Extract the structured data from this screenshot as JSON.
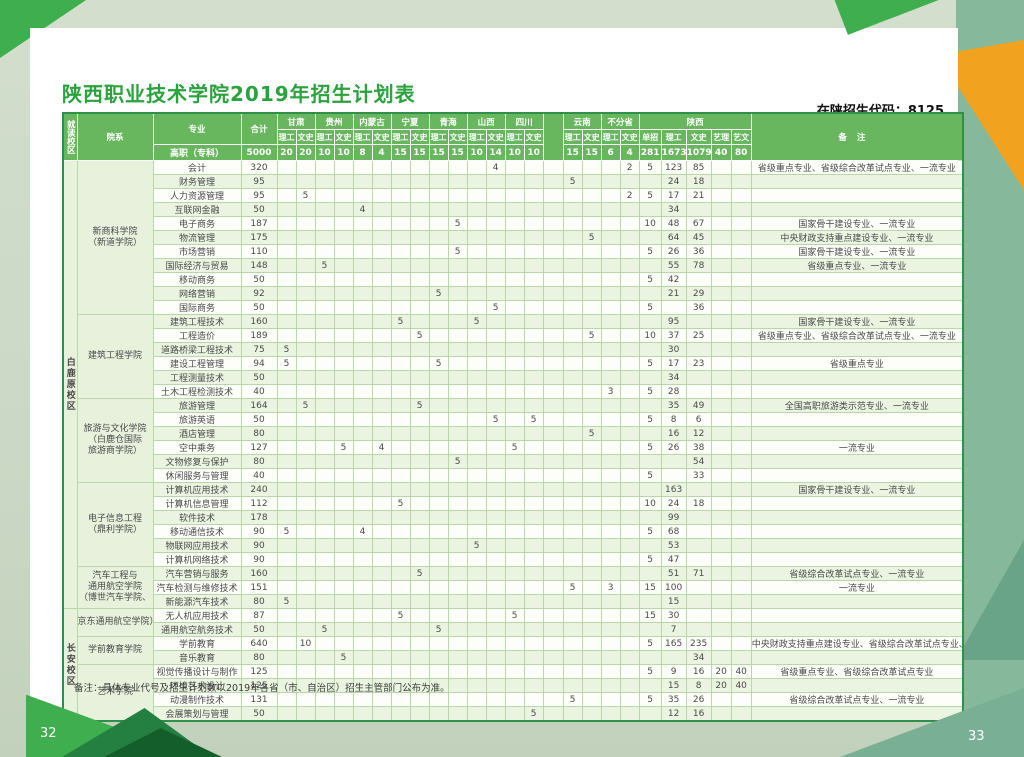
{
  "page": {
    "title": "陕西职业技术学院2019年招生计划表",
    "admission_code_label": "在陕招生代码：8125",
    "footnote": "备注：具体专业代号及招生计划数以2019年各省（市、自治区）招生主管部门公布为准。",
    "page_number_left": "32",
    "page_number_right": "33"
  },
  "colors": {
    "title_green": "#2aa23d",
    "header_green": "#68b75e",
    "thick_border_green": "#2e9049",
    "teal_band": "#86b89c",
    "orange_accent": "#f1a31f"
  },
  "table": {
    "corner_header": "就读校区",
    "college_header": "院系",
    "major_header": "专业",
    "total_header": "合计",
    "level_row_label": "高职（专科）",
    "grand_total": "5000",
    "subject_labels": [
      "理工",
      "文史"
    ],
    "provinces": [
      {
        "name": "甘肃",
        "quotas": [
          "20",
          "20"
        ]
      },
      {
        "name": "贵州",
        "quotas": [
          "10",
          "10"
        ]
      },
      {
        "name": "内蒙古",
        "quotas": [
          "8",
          "4"
        ]
      },
      {
        "name": "宁夏",
        "quotas": [
          "15",
          "15"
        ]
      },
      {
        "name": "青海",
        "quotas": [
          "15",
          "15"
        ]
      },
      {
        "name": "山西",
        "quotas": [
          "10",
          "14"
        ]
      },
      {
        "name": "四川",
        "quotas": [
          "10",
          "10"
        ]
      }
    ],
    "provinces_after_gap": [
      {
        "name": "云南",
        "quotas": [
          "15",
          "15"
        ]
      },
      {
        "name": "不分省",
        "quotas": [
          "6",
          "4"
        ]
      }
    ],
    "shaanxi": {
      "name": "陕西",
      "subs": [
        "单招",
        "理工",
        "文史",
        "艺理",
        "艺文"
      ],
      "quotas": [
        "281",
        "1673",
        "1079",
        "40",
        "80"
      ]
    },
    "remark_header": "备注",
    "campuses": [
      {
        "label": "白鹿原校区",
        "span": 32
      },
      {
        "label": "长安校区",
        "span": 8
      }
    ],
    "colleges": [
      {
        "lines": [
          "新商科学院",
          "（新道学院）"
        ],
        "span": 11
      },
      {
        "lines": [
          "建筑工程学院"
        ],
        "span": 6
      },
      {
        "lines": [
          "旅游与文化学院",
          "（白鹿仓国际",
          "旅游商学院）"
        ],
        "span": 6
      },
      {
        "lines": [
          "电子信息工程",
          "（鼎利学院）"
        ],
        "span": 6
      },
      {
        "lines": [
          "汽车工程与",
          "通用航空学院",
          "（博世汽车学院、"
        ],
        "span": 3
      },
      {
        "lines": [
          "京东通用航空学院）"
        ],
        "span": 2
      },
      {
        "lines": [
          "学前教育学院"
        ],
        "span": 2
      },
      {
        "lines": [
          "艺术学院"
        ],
        "span": 4
      }
    ],
    "thick_row_starts": [
      11,
      17,
      23,
      29,
      32,
      34,
      36
    ],
    "rows": [
      [
        "会计",
        "320",
        "",
        "",
        "",
        "",
        "",
        "",
        "",
        "",
        "",
        "",
        "",
        "4",
        "",
        "",
        "",
        "",
        "",
        "2",
        "5",
        "123",
        "85",
        "",
        "",
        "省级重点专业、省级综合改革试点专业、一流专业"
      ],
      [
        "财务管理",
        "95",
        "",
        "",
        "",
        "",
        "",
        "",
        "",
        "",
        "",
        "",
        "",
        "",
        "",
        "",
        "5",
        "",
        "",
        "",
        "",
        "24",
        "18",
        "",
        "",
        ""
      ],
      [
        "人力资源管理",
        "95",
        "",
        "5",
        "",
        "",
        "",
        "",
        "",
        "",
        "",
        "",
        "",
        "",
        "",
        "",
        "",
        "",
        "",
        "2",
        "5",
        "17",
        "21",
        "",
        "",
        ""
      ],
      [
        "互联网金融",
        "50",
        "",
        "",
        "",
        "",
        "4",
        "",
        "",
        "",
        "",
        "",
        "",
        "",
        "",
        "",
        "",
        "",
        "",
        "",
        "",
        "34",
        "",
        "",
        "",
        ""
      ],
      [
        "电子商务",
        "187",
        "",
        "",
        "",
        "",
        "",
        "",
        "",
        "",
        "",
        "5",
        "",
        "",
        "",
        "",
        "",
        "",
        "",
        "",
        "10",
        "48",
        "67",
        "",
        "",
        "国家骨干建设专业、一流专业"
      ],
      [
        "物流管理",
        "175",
        "",
        "",
        "",
        "",
        "",
        "",
        "",
        "",
        "",
        "",
        "",
        "",
        "",
        "",
        "",
        "5",
        "",
        "",
        "",
        "64",
        "45",
        "",
        "",
        "中央财政支持重点建设专业、一流专业"
      ],
      [
        "市场营销",
        "110",
        "",
        "",
        "",
        "",
        "",
        "",
        "",
        "",
        "",
        "5",
        "",
        "",
        "",
        "",
        "",
        "",
        "",
        "",
        "5",
        "26",
        "36",
        "",
        "",
        "国家骨干建设专业、一流专业"
      ],
      [
        "国际经济与贸易",
        "148",
        "",
        "",
        "5",
        "",
        "",
        "",
        "",
        "",
        "",
        "",
        "",
        "",
        "",
        "",
        "",
        "",
        "",
        "",
        "",
        "55",
        "78",
        "",
        "",
        "省级重点专业、一流专业"
      ],
      [
        "移动商务",
        "50",
        "",
        "",
        "",
        "",
        "",
        "",
        "",
        "",
        "",
        "",
        "",
        "",
        "",
        "",
        "",
        "",
        "",
        "",
        "5",
        "42",
        "",
        "",
        "",
        ""
      ],
      [
        "网络营销",
        "92",
        "",
        "",
        "",
        "",
        "",
        "",
        "",
        "",
        "5",
        "",
        "",
        "",
        "",
        "",
        "",
        "",
        "",
        "",
        "",
        "21",
        "29",
        "",
        "",
        ""
      ],
      [
        "国际商务",
        "50",
        "",
        "",
        "",
        "",
        "",
        "",
        "",
        "",
        "",
        "",
        "",
        "5",
        "",
        "",
        "",
        "",
        "",
        "",
        "5",
        "",
        "36",
        "",
        "",
        ""
      ],
      [
        "建筑工程技术",
        "160",
        "",
        "",
        "",
        "",
        "",
        "",
        "5",
        "",
        "",
        "",
        "5",
        "",
        "",
        "",
        "",
        "",
        "",
        "",
        "",
        "95",
        "",
        "",
        "",
        "国家骨干建设专业、一流专业"
      ],
      [
        "工程造价",
        "189",
        "",
        "",
        "",
        "",
        "",
        "",
        "",
        "5",
        "",
        "",
        "",
        "",
        "",
        "",
        "",
        "5",
        "",
        "",
        "10",
        "37",
        "25",
        "",
        "",
        "省级重点专业、省级综合改革试点专业、一流专业"
      ],
      [
        "道路桥梁工程技术",
        "75",
        "5",
        "",
        "",
        "",
        "",
        "",
        "",
        "",
        "",
        "",
        "",
        "",
        "",
        "",
        "",
        "",
        "",
        "",
        "",
        "30",
        "",
        "",
        "",
        ""
      ],
      [
        "建设工程管理",
        "94",
        "5",
        "",
        "",
        "",
        "",
        "",
        "",
        "",
        "5",
        "",
        "",
        "",
        "",
        "",
        "",
        "",
        "",
        "",
        "5",
        "17",
        "23",
        "",
        "",
        "省级重点专业"
      ],
      [
        "工程测量技术",
        "50",
        "",
        "",
        "",
        "",
        "",
        "",
        "",
        "",
        "",
        "",
        "",
        "",
        "",
        "",
        "",
        "",
        "",
        "",
        "",
        "34",
        "",
        "",
        "",
        ""
      ],
      [
        "土木工程检测技术",
        "40",
        "",
        "",
        "",
        "",
        "",
        "",
        "",
        "",
        "",
        "",
        "",
        "",
        "",
        "",
        "",
        "",
        "3",
        "",
        "5",
        "28",
        "",
        "",
        "",
        ""
      ],
      [
        "旅游管理",
        "164",
        "",
        "5",
        "",
        "",
        "",
        "",
        "",
        "5",
        "",
        "",
        "",
        "",
        "",
        "",
        "",
        "",
        "",
        "",
        "",
        "35",
        "49",
        "",
        "",
        "全国高职旅游类示范专业、一流专业"
      ],
      [
        "旅游英语",
        "50",
        "",
        "",
        "",
        "",
        "",
        "",
        "",
        "",
        "",
        "",
        "",
        "5",
        "",
        "5",
        "",
        "",
        "",
        "",
        "5",
        "8",
        "6",
        "",
        "",
        ""
      ],
      [
        "酒店管理",
        "80",
        "",
        "",
        "",
        "",
        "",
        "",
        "",
        "",
        "",
        "",
        "",
        "",
        "",
        "",
        "",
        "5",
        "",
        "",
        "",
        "16",
        "12",
        "",
        "",
        ""
      ],
      [
        "空中乘务",
        "127",
        "",
        "",
        "",
        "5",
        "",
        "4",
        "",
        "",
        "",
        "",
        "",
        "",
        "5",
        "",
        "",
        "",
        "",
        "",
        "5",
        "26",
        "38",
        "",
        "",
        "一流专业"
      ],
      [
        "文物修复与保护",
        "80",
        "",
        "",
        "",
        "",
        "",
        "",
        "",
        "",
        "",
        "5",
        "",
        "",
        "",
        "",
        "",
        "",
        "",
        "",
        "",
        "",
        "54",
        "",
        "",
        ""
      ],
      [
        "休闲服务与管理",
        "40",
        "",
        "",
        "",
        "",
        "",
        "",
        "",
        "",
        "",
        "",
        "",
        "",
        "",
        "",
        "",
        "",
        "",
        "",
        "5",
        "",
        "33",
        "",
        "",
        ""
      ],
      [
        "计算机应用技术",
        "240",
        "",
        "",
        "",
        "",
        "",
        "",
        "",
        "",
        "",
        "",
        "",
        "",
        "",
        "",
        "",
        "",
        "",
        "",
        "",
        "163",
        "",
        "",
        "",
        "国家骨干建设专业、一流专业"
      ],
      [
        "计算机信息管理",
        "112",
        "",
        "",
        "",
        "",
        "",
        "",
        "5",
        "",
        "",
        "",
        "",
        "",
        "",
        "",
        "",
        "",
        "",
        "",
        "10",
        "24",
        "18",
        "",
        "",
        ""
      ],
      [
        "软件技术",
        "178",
        "",
        "",
        "",
        "",
        "",
        "",
        "",
        "",
        "",
        "",
        "",
        "",
        "",
        "",
        "",
        "",
        "",
        "",
        "",
        "99",
        "",
        "",
        "",
        ""
      ],
      [
        "移动通信技术",
        "90",
        "5",
        "",
        "",
        "",
        "4",
        "",
        "",
        "",
        "",
        "",
        "",
        "",
        "",
        "",
        "",
        "",
        "",
        "",
        "5",
        "68",
        "",
        "",
        "",
        ""
      ],
      [
        "物联网应用技术",
        "90",
        "",
        "",
        "",
        "",
        "",
        "",
        "",
        "",
        "",
        "",
        "5",
        "",
        "",
        "",
        "",
        "",
        "",
        "",
        "",
        "53",
        "",
        "",
        "",
        ""
      ],
      [
        "计算机网络技术",
        "90",
        "",
        "",
        "",
        "",
        "",
        "",
        "",
        "",
        "",
        "",
        "",
        "",
        "",
        "",
        "",
        "",
        "",
        "",
        "5",
        "47",
        "",
        "",
        "",
        ""
      ],
      [
        "汽车营销与服务",
        "160",
        "",
        "",
        "",
        "",
        "",
        "",
        "",
        "5",
        "",
        "",
        "",
        "",
        "",
        "",
        "",
        "",
        "",
        "",
        "",
        "51",
        "71",
        "",
        "",
        "省级综合改革试点专业、一流专业"
      ],
      [
        "汽车检测与维修技术",
        "151",
        "",
        "",
        "",
        "",
        "",
        "",
        "",
        "",
        "",
        "",
        "",
        "",
        "",
        "",
        "5",
        "",
        "3",
        "",
        "15",
        "100",
        "",
        "",
        "",
        "一流专业"
      ],
      [
        "新能源汽车技术",
        "80",
        "5",
        "",
        "",
        "",
        "",
        "",
        "",
        "",
        "",
        "",
        "",
        "",
        "",
        "",
        "",
        "",
        "",
        "",
        "",
        "15",
        "",
        "",
        "",
        ""
      ],
      [
        "无人机应用技术",
        "87",
        "",
        "",
        "",
        "",
        "",
        "",
        "5",
        "",
        "",
        "",
        "",
        "",
        "5",
        "",
        "",
        "",
        "",
        "",
        "15",
        "30",
        "",
        "",
        "",
        ""
      ],
      [
        "通用航空航务技术",
        "50",
        "",
        "",
        "5",
        "",
        "",
        "",
        "",
        "",
        "5",
        "",
        "",
        "",
        "",
        "",
        "",
        "",
        "",
        "",
        "",
        "7",
        "",
        "",
        "",
        ""
      ],
      [
        "学前教育",
        "640",
        "",
        "10",
        "",
        "",
        "",
        "",
        "",
        "",
        "",
        "",
        "",
        "",
        "",
        "",
        "",
        "",
        "",
        "",
        "5",
        "165",
        "235",
        "",
        "",
        "中央财政支持重点建设专业、省级综合改革试点专业、一流专业"
      ],
      [
        "音乐教育",
        "80",
        "",
        "",
        "",
        "5",
        "",
        "",
        "",
        "",
        "",
        "",
        "",
        "",
        "",
        "",
        "",
        "",
        "",
        "",
        "",
        "",
        "34",
        "",
        "",
        ""
      ],
      [
        "视觉传播设计与制作",
        "125",
        "",
        "",
        "",
        "",
        "",
        "",
        "",
        "",
        "",
        "",
        "",
        "",
        "",
        "",
        "",
        "",
        "",
        "",
        "5",
        "9",
        "16",
        "20",
        "40",
        "省级重点专业、省级综合改革试点专业"
      ],
      [
        "环境艺术设计",
        "125",
        "",
        "",
        "",
        "",
        "",
        "",
        "",
        "",
        "",
        "",
        "",
        "",
        "",
        "",
        "",
        "",
        "",
        "",
        "",
        "15",
        "8",
        "20",
        "40",
        ""
      ],
      [
        "动漫制作技术",
        "131",
        "",
        "",
        "",
        "",
        "",
        "",
        "",
        "",
        "",
        "",
        "",
        "",
        "",
        "",
        "5",
        "",
        "",
        "",
        "5",
        "35",
        "26",
        "",
        "",
        "省级综合改革试点专业、一流专业"
      ],
      [
        "会展策划与管理",
        "50",
        "",
        "",
        "",
        "",
        "",
        "",
        "",
        "",
        "",
        "",
        "",
        "",
        "",
        "5",
        "",
        "",
        "",
        "",
        "",
        "12",
        "16",
        "",
        "",
        ""
      ]
    ]
  }
}
